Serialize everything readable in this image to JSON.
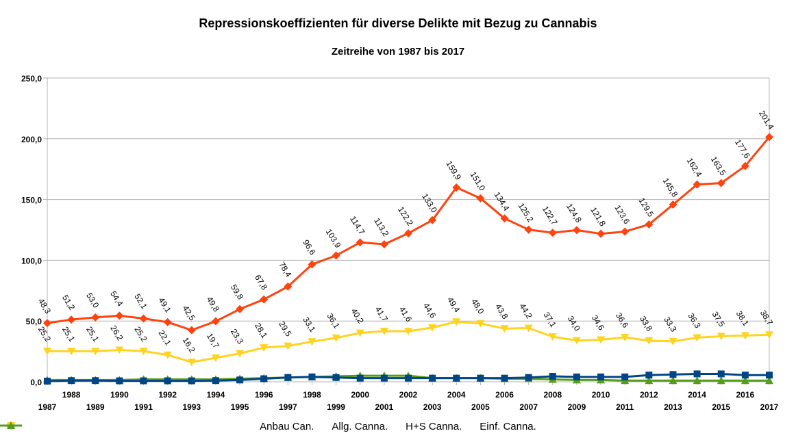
{
  "chart_data": {
    "type": "line",
    "title": "Repressionskoeffizienten für diverse Delikte mit Bezug zu Cannabis",
    "subtitle": "Zeitreihe von 1987 bis 2017",
    "x": [
      "1987",
      "1988",
      "1989",
      "1990",
      "1991",
      "1992",
      "1993",
      "1994",
      "1995",
      "1996",
      "1997",
      "1998",
      "1999",
      "2000",
      "2001",
      "2002",
      "2003",
      "2004",
      "2005",
      "2006",
      "2007",
      "2008",
      "2009",
      "2010",
      "2011",
      "2012",
      "2013",
      "2014",
      "2015",
      "2016",
      "2017"
    ],
    "ylim": [
      0,
      250
    ],
    "yticks": [
      "0,0",
      "50,0",
      "100,0",
      "150,0",
      "200,0",
      "250,0"
    ],
    "grid": true,
    "legend": "bottom",
    "series": [
      {
        "name": "Anbau Can.",
        "color": "#004586",
        "marker": "square",
        "values": [
          0.5,
          1.0,
          1.0,
          0.8,
          0.8,
          0.8,
          0.8,
          1.0,
          1.5,
          2.5,
          3.5,
          4.0,
          3.5,
          3.0,
          3.0,
          3.0,
          3.0,
          3.0,
          3.0,
          3.0,
          3.5,
          4.5,
          4.0,
          4.0,
          4.0,
          5.5,
          6.0,
          6.5,
          6.5,
          5.5,
          5.5
        ],
        "labels": []
      },
      {
        "name": "Allg. Canna.",
        "color": "#ff420e",
        "marker": "diamond",
        "values": [
          48.3,
          51.2,
          53.0,
          54.4,
          52.1,
          49.1,
          42.5,
          49.8,
          59.8,
          67.8,
          78.4,
          96.6,
          103.9,
          114.7,
          113.2,
          122.2,
          133.0,
          159.9,
          151.0,
          134.4,
          125.2,
          122.7,
          124.8,
          121.8,
          123.6,
          129.5,
          145.8,
          162.4,
          163.5,
          177.6,
          201.4
        ],
        "labels": [
          "48,3",
          "51,2",
          "53,0",
          "54,4",
          "52,1",
          "49,1",
          "42,5",
          "49,8",
          "59,8",
          "67,8",
          "78,4",
          "96,6",
          "103,9",
          "114,7",
          "113,2",
          "122,2",
          "133,0",
          "159,9",
          "151,0",
          "134,4",
          "125,2",
          "122,7",
          "124,8",
          "121,8",
          "123,6",
          "129,5",
          "145,8",
          "162,4",
          "163,5",
          "177,6",
          "201,4"
        ]
      },
      {
        "name": "H+S Canna.",
        "color": "#ffd320",
        "marker": "triangle-down",
        "values": [
          25.2,
          25.1,
          25.1,
          26.2,
          25.2,
          22.1,
          16.2,
          19.7,
          23.3,
          28.1,
          29.5,
          33.1,
          36.1,
          40.2,
          41.7,
          41.6,
          44.6,
          49.4,
          48.0,
          43.8,
          44.2,
          37.1,
          34.0,
          34.6,
          36.6,
          33.8,
          33.3,
          36.3,
          37.5,
          38.1,
          38.7
        ],
        "labels": [
          "25,2",
          "25,1",
          "25,1",
          "26,2",
          "25,2",
          "22,1",
          "16,2",
          "19,7",
          "23,3",
          "28,1",
          "29,5",
          "33,1",
          "36,1",
          "40,2",
          "41,7",
          "41,6",
          "44,6",
          "49,4",
          "48,0",
          "43,8",
          "44,2",
          "37,1",
          "34,0",
          "34,6",
          "36,6",
          "33,8",
          "33,3",
          "36,3",
          "37,5",
          "38,1",
          "38,7"
        ]
      },
      {
        "name": "Einf. Canna.",
        "color": "#579d1c",
        "marker": "triangle-up",
        "values": [
          1.5,
          1.5,
          1.5,
          1.5,
          2.0,
          2.0,
          2.0,
          2.0,
          2.5,
          3.0,
          3.5,
          4.0,
          4.5,
          5.0,
          5.0,
          5.0,
          3.0,
          3.0,
          3.0,
          2.5,
          2.5,
          2.0,
          1.5,
          1.5,
          1.0,
          1.0,
          1.0,
          1.0,
          1.0,
          1.0,
          1.0
        ],
        "labels": []
      }
    ]
  }
}
